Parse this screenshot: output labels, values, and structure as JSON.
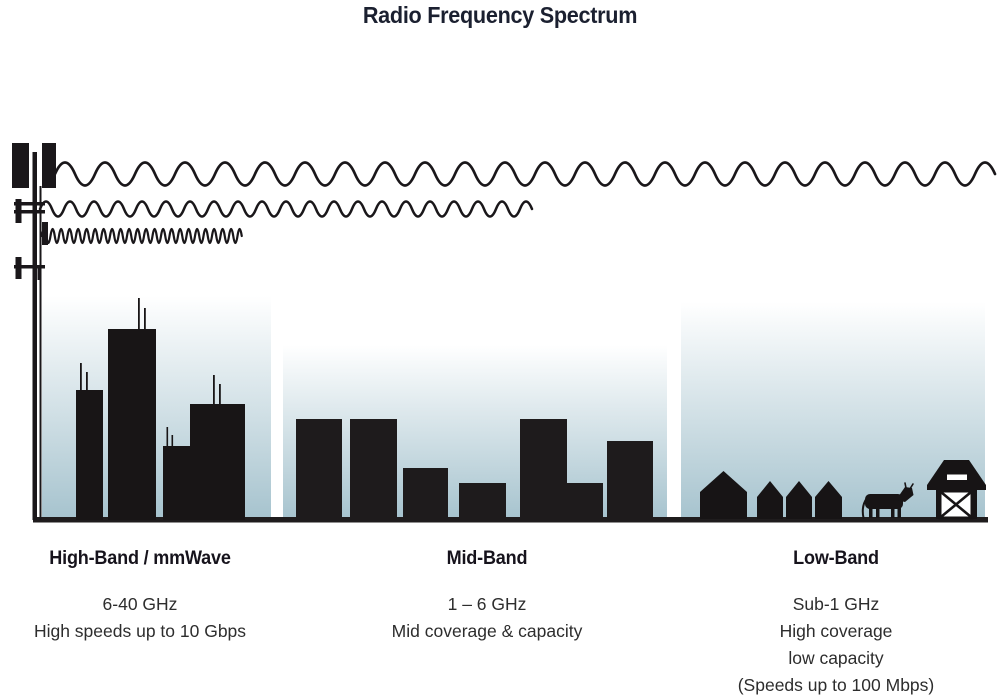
{
  "title": "Radio Frequency Spectrum",
  "bands": [
    {
      "name": "High-Band / mmWave",
      "lines": [
        "6-40 GHz",
        "High speeds up to 10 Gbps"
      ],
      "scene_icon": "city-skyline-icon",
      "wave_icon": "short-wavelength-wave-icon"
    },
    {
      "name": "Mid-Band",
      "lines": [
        "1 – 6 GHz",
        "Mid coverage & capacity"
      ],
      "scene_icon": "town-buildings-icon",
      "wave_icon": "medium-wavelength-wave-icon"
    },
    {
      "name": "Low-Band",
      "lines": [
        "Sub-1 GHz",
        "High coverage",
        "low capacity",
        "(Speeds up to 100 Mbps)"
      ],
      "scene_icon": "farm-barn-cow-icon",
      "wave_icon": "long-wavelength-wave-icon"
    }
  ],
  "icons": {
    "tower": "cell-tower-icon",
    "cow": "cow-icon",
    "barn": "barn-icon",
    "houses": "house-icon"
  },
  "colors": {
    "ink": "#1a171a",
    "sky_top": "#ffffff",
    "sky_bottom": "#a6c3ce",
    "title_text": "#1b2030",
    "body_text": "#2d2d2d"
  }
}
